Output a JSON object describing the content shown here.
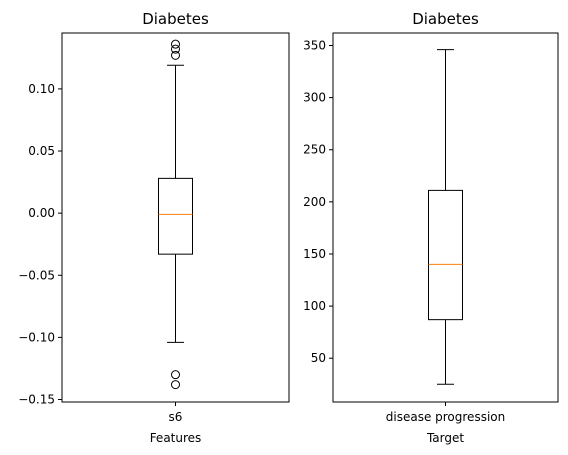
{
  "chart_data": [
    {
      "type": "box",
      "title": "Diabetes",
      "xlabel": "Features",
      "ylabel": "",
      "categories": [
        "s6"
      ],
      "ylim": [
        -0.152,
        0.145
      ],
      "yticks": [
        -0.15,
        -0.1,
        -0.05,
        0.0,
        0.05,
        0.1
      ],
      "ytick_labels": [
        "−0.15",
        "−0.10",
        "−0.05",
        "0.00",
        "0.05",
        "0.10"
      ],
      "boxes": [
        {
          "label": "s6",
          "whisker_low": -0.104,
          "q1": -0.033,
          "median": -0.001,
          "q3": 0.028,
          "whisker_high": 0.119,
          "outliers": [
            0.127,
            0.132,
            0.136,
            -0.13,
            -0.138
          ]
        }
      ],
      "grid": false,
      "colors": {
        "box": "#000000",
        "median": "#ff7f0e"
      }
    },
    {
      "type": "box",
      "title": "Diabetes",
      "xlabel": "Target",
      "ylabel": "",
      "categories": [
        "disease progression"
      ],
      "ylim": [
        8,
        362
      ],
      "yticks": [
        50,
        100,
        150,
        200,
        250,
        300,
        350
      ],
      "ytick_labels": [
        "50",
        "100",
        "150",
        "200",
        "250",
        "300",
        "350"
      ],
      "boxes": [
        {
          "label": "disease progression",
          "whisker_low": 25,
          "q1": 87,
          "median": 140,
          "q3": 211,
          "whisker_high": 346,
          "outliers": []
        }
      ],
      "grid": false,
      "colors": {
        "box": "#000000",
        "median": "#ff7f0e"
      }
    }
  ]
}
